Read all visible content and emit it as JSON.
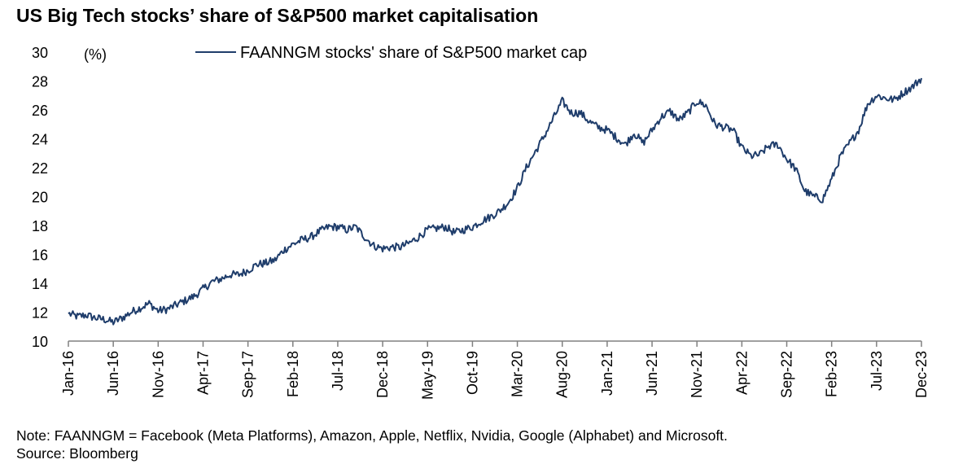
{
  "title": "US Big Tech stocks’ share of S&P500 market capitalisation",
  "note": "Note: FAANNGM = Facebook (Meta Platforms), Amazon, Apple, Netflix, Nvidia, Google (Alphabet) and Microsoft.",
  "source": "Source: Bloomberg",
  "colors": {
    "series": "#1f3d6b",
    "axis": "#808080"
  },
  "chart_data": {
    "type": "line",
    "ylabel": "(%)",
    "ylim": [
      10,
      30
    ],
    "yticks": [
      10,
      12,
      14,
      16,
      18,
      20,
      22,
      24,
      26,
      28,
      30
    ],
    "xlim": [
      "2016-01",
      "2023-12"
    ],
    "xtick_labels": [
      "Jan-16",
      "Jun-16",
      "Nov-16",
      "Apr-17",
      "Sep-17",
      "Feb-18",
      "Jul-18",
      "Dec-18",
      "May-19",
      "Oct-19",
      "Mar-20",
      "Aug-20",
      "Jan-21",
      "Jun-21",
      "Nov-21",
      "Apr-22",
      "Sep-22",
      "Feb-23",
      "Jul-23",
      "Dec-23"
    ],
    "legend_position": "top-center",
    "grid": false,
    "series": [
      {
        "name": "FAANNGM stocks' share of S&P500 market cap",
        "x": [
          "2016-01",
          "2016-02",
          "2016-03",
          "2016-04",
          "2016-05",
          "2016-06",
          "2016-07",
          "2016-08",
          "2016-09",
          "2016-10",
          "2016-11",
          "2016-12",
          "2017-01",
          "2017-02",
          "2017-03",
          "2017-04",
          "2017-05",
          "2017-06",
          "2017-07",
          "2017-08",
          "2017-09",
          "2017-10",
          "2017-11",
          "2017-12",
          "2018-01",
          "2018-02",
          "2018-03",
          "2018-04",
          "2018-05",
          "2018-06",
          "2018-07",
          "2018-08",
          "2018-09",
          "2018-10",
          "2018-11",
          "2018-12",
          "2019-01",
          "2019-02",
          "2019-03",
          "2019-04",
          "2019-05",
          "2019-06",
          "2019-07",
          "2019-08",
          "2019-09",
          "2019-10",
          "2019-11",
          "2019-12",
          "2020-01",
          "2020-02",
          "2020-03",
          "2020-04",
          "2020-05",
          "2020-06",
          "2020-07",
          "2020-08",
          "2020-09",
          "2020-10",
          "2020-11",
          "2020-12",
          "2021-01",
          "2021-02",
          "2021-03",
          "2021-04",
          "2021-05",
          "2021-06",
          "2021-07",
          "2021-08",
          "2021-09",
          "2021-10",
          "2021-11",
          "2021-12",
          "2022-01",
          "2022-02",
          "2022-03",
          "2022-04",
          "2022-05",
          "2022-06",
          "2022-07",
          "2022-08",
          "2022-09",
          "2022-10",
          "2022-11",
          "2022-12",
          "2023-01",
          "2023-02",
          "2023-03",
          "2023-04",
          "2023-05",
          "2023-06",
          "2023-07",
          "2023-08",
          "2023-09",
          "2023-10",
          "2023-11",
          "2023-12"
        ],
        "values": [
          11.9,
          11.7,
          11.8,
          11.6,
          11.5,
          11.3,
          11.6,
          12.0,
          12.3,
          12.6,
          12.1,
          12.2,
          12.5,
          12.8,
          13.1,
          13.6,
          14.1,
          14.3,
          14.6,
          14.6,
          14.9,
          15.3,
          15.4,
          15.6,
          16.3,
          16.7,
          17.0,
          17.2,
          17.6,
          17.9,
          17.9,
          17.7,
          17.9,
          17.2,
          16.6,
          16.4,
          16.5,
          16.5,
          16.8,
          17.2,
          17.7,
          17.8,
          17.9,
          17.5,
          17.7,
          17.9,
          18.3,
          18.6,
          19.0,
          19.6,
          20.6,
          22.0,
          23.1,
          24.2,
          25.4,
          26.6,
          25.8,
          25.8,
          25.2,
          24.8,
          24.6,
          24.1,
          23.6,
          24.4,
          23.7,
          24.6,
          25.5,
          25.9,
          25.3,
          25.8,
          26.6,
          26.3,
          25.0,
          24.8,
          24.6,
          23.4,
          22.8,
          22.9,
          23.5,
          23.6,
          22.6,
          21.9,
          20.4,
          20.0,
          19.8,
          21.2,
          22.8,
          23.7,
          24.6,
          26.4,
          27.0,
          26.8,
          26.7,
          27.2,
          27.6,
          28.2
        ]
      }
    ]
  }
}
